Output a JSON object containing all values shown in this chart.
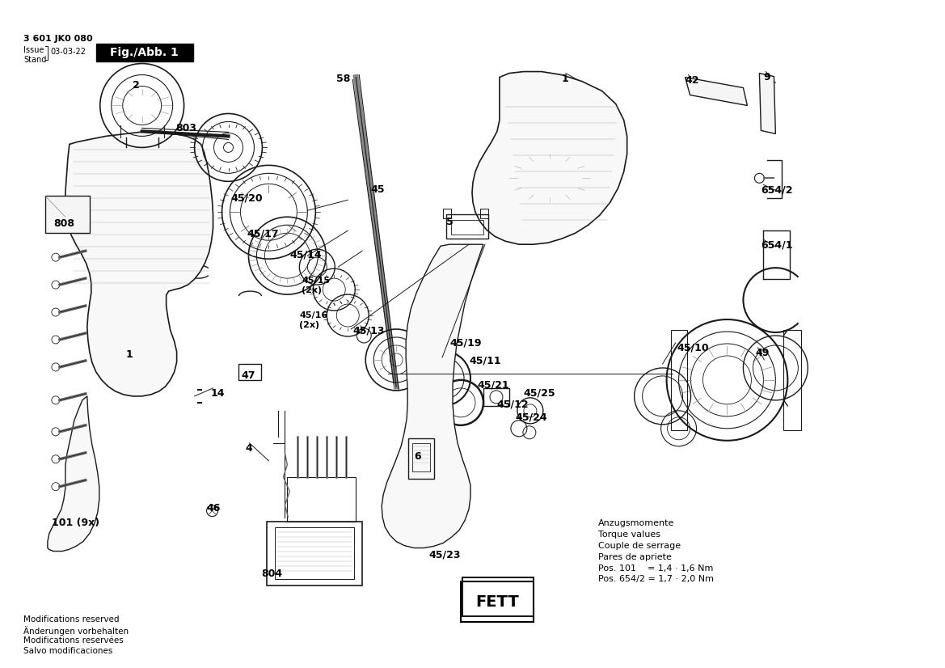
{
  "background_color": "#ffffff",
  "header_line1": "3 601 JK0 080",
  "header_issue": "Issue",
  "header_stand": "Stand",
  "header_date": "03-03-22",
  "header_fig": "Fig./Abb. 1",
  "fig_bg": "#000000",
  "fig_text_color": "#ffffff",
  "footer_lines": [
    "Modifications reserved",
    "Änderungen vorbehalten",
    "Modifications reservées",
    "Salvo modificaciones"
  ],
  "torque_lines": [
    "Anzugsmomente",
    "Torque values",
    "Couple de serrage",
    "Pares de apriete",
    "Pos. 101    = 1,4 · 1,6 Nm",
    "Pos. 654/2 = 1,7 · 2,0 Nm"
  ],
  "fett_text": "FETT",
  "ec": "#1a1a1a",
  "lw": 0.8
}
